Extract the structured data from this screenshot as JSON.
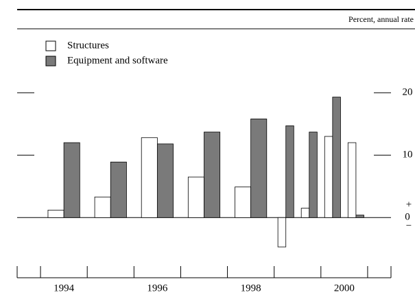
{
  "chart_data": {
    "type": "bar",
    "unit_label": "Percent, annual rate",
    "x": [
      1994.5,
      1995.5,
      1996.5,
      1997.5,
      1998.5,
      1999.25,
      1999.75,
      2000.25,
      2000.75
    ],
    "series": [
      {
        "name": "Structures",
        "color": "#ffffff",
        "values": [
          1.2,
          3.3,
          12.8,
          6.5,
          4.9,
          -4.7,
          1.5,
          13,
          12
        ]
      },
      {
        "name": "Equipment and software",
        "color": "#7a7a7a",
        "values": [
          12,
          8.9,
          11.8,
          13.7,
          15.8,
          14.7,
          13.7,
          19.3,
          0.4
        ]
      }
    ],
    "xlim": [
      1993.5,
      2001.5
    ],
    "xticks": [
      1993.5,
      1994,
      1995,
      1996,
      1997,
      1998,
      1999,
      2000,
      2001,
      2001.5
    ],
    "xlabels": [
      {
        "value": 1994.5,
        "label": "1994"
      },
      {
        "value": 1996.5,
        "label": "1996"
      },
      {
        "value": 1998.5,
        "label": "1998"
      },
      {
        "value": 2000.5,
        "label": "2000"
      }
    ],
    "ylim": [
      -7,
      22
    ],
    "yticks": [
      0,
      10,
      20
    ],
    "zero_signs": [
      "+",
      "−"
    ]
  }
}
